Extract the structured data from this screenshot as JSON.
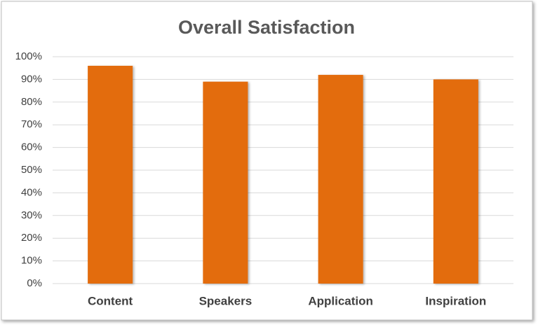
{
  "chart_data": {
    "type": "bar",
    "title": "Overall Satisfaction",
    "categories": [
      "Content",
      "Speakers",
      "Application",
      "Inspiration"
    ],
    "values": [
      96,
      89,
      92,
      90
    ],
    "color": "#e36c0a",
    "ylim": [
      0,
      100
    ],
    "yticks": [
      {
        "value": 0,
        "label": "0%"
      },
      {
        "value": 10,
        "label": "10%"
      },
      {
        "value": 20,
        "label": "20%"
      },
      {
        "value": 30,
        "label": "30%"
      },
      {
        "value": 40,
        "label": "40%"
      },
      {
        "value": 50,
        "label": "50%"
      },
      {
        "value": 60,
        "label": "60%"
      },
      {
        "value": 70,
        "label": "70%"
      },
      {
        "value": 80,
        "label": "80%"
      },
      {
        "value": 90,
        "label": "90%"
      },
      {
        "value": 100,
        "label": "100%"
      }
    ],
    "grid": true
  }
}
